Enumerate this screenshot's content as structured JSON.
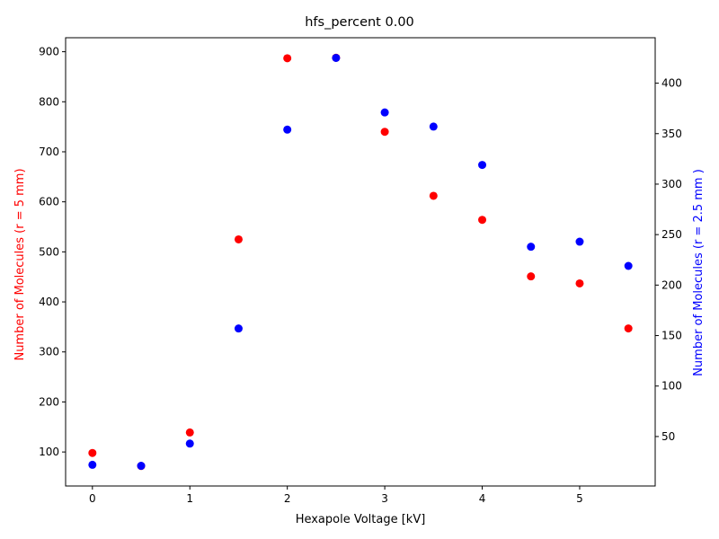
{
  "chart_data": {
    "type": "scatter",
    "title": "hfs_percent 0.00",
    "xlabel": "Hexapole Voltage [kV]",
    "ylabel_left": "Number of Molecules (r = 5 mm)",
    "ylabel_right": "Number of Molecules (r = 2.5 mm )",
    "xlim": [
      -0.275,
      5.775
    ],
    "ylim_left": [
      32,
      928
    ],
    "ylim_right": [
      1,
      445
    ],
    "xticks": [
      0,
      1,
      2,
      3,
      4,
      5
    ],
    "yticks_left": [
      100,
      200,
      300,
      400,
      500,
      600,
      700,
      800,
      900
    ],
    "yticks_right": [
      50,
      100,
      150,
      200,
      250,
      300,
      350,
      400
    ],
    "grid": false,
    "series": [
      {
        "axis": "left",
        "color": "#ff0000",
        "x": [
          0.0,
          0.5,
          1.0,
          1.5,
          2.0,
          2.5,
          3.0,
          3.5,
          4.0,
          4.5,
          5.0,
          5.5
        ],
        "y": [
          98,
          72,
          139,
          525,
          887,
          888,
          740,
          612,
          564,
          451,
          437,
          347
        ]
      },
      {
        "axis": "right",
        "color": "#0000ff",
        "x": [
          0.0,
          0.5,
          1.0,
          1.5,
          2.0,
          2.5,
          3.0,
          3.5,
          4.0,
          4.5,
          5.0,
          5.5
        ],
        "y": [
          22,
          21,
          43,
          157,
          354,
          425,
          371,
          357,
          319,
          238,
          243,
          219
        ]
      }
    ]
  }
}
